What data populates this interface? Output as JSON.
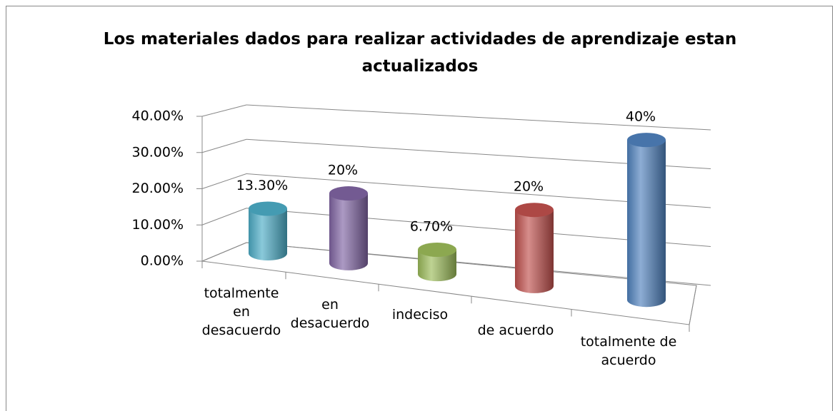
{
  "chart_data": {
    "type": "cylinder-bar",
    "title": "Los materiales dados para realizar actividades de aprendizaje estan actualizados",
    "categories": [
      "totalmente en desacuerdo",
      "en desacuerdo",
      "indeciso",
      "de acuerdo",
      "totalmente de acuerdo"
    ],
    "values": [
      13.3,
      20,
      6.7,
      20,
      40
    ],
    "value_labels": [
      "13.30%",
      "20%",
      "6.70%",
      "20%",
      "40%"
    ],
    "colors": [
      "#4bacc6",
      "#8064a2",
      "#9bbb59",
      "#c0504d",
      "#4f81bd"
    ],
    "ylim": [
      0,
      40
    ],
    "yticks": [
      {
        "value": 0,
        "label": "0.00%"
      },
      {
        "value": 10,
        "label": "10.00%"
      },
      {
        "value": 20,
        "label": "20.00%"
      },
      {
        "value": 30,
        "label": "30.00%"
      },
      {
        "value": 40,
        "label": "40.00%"
      }
    ],
    "grid": true
  }
}
